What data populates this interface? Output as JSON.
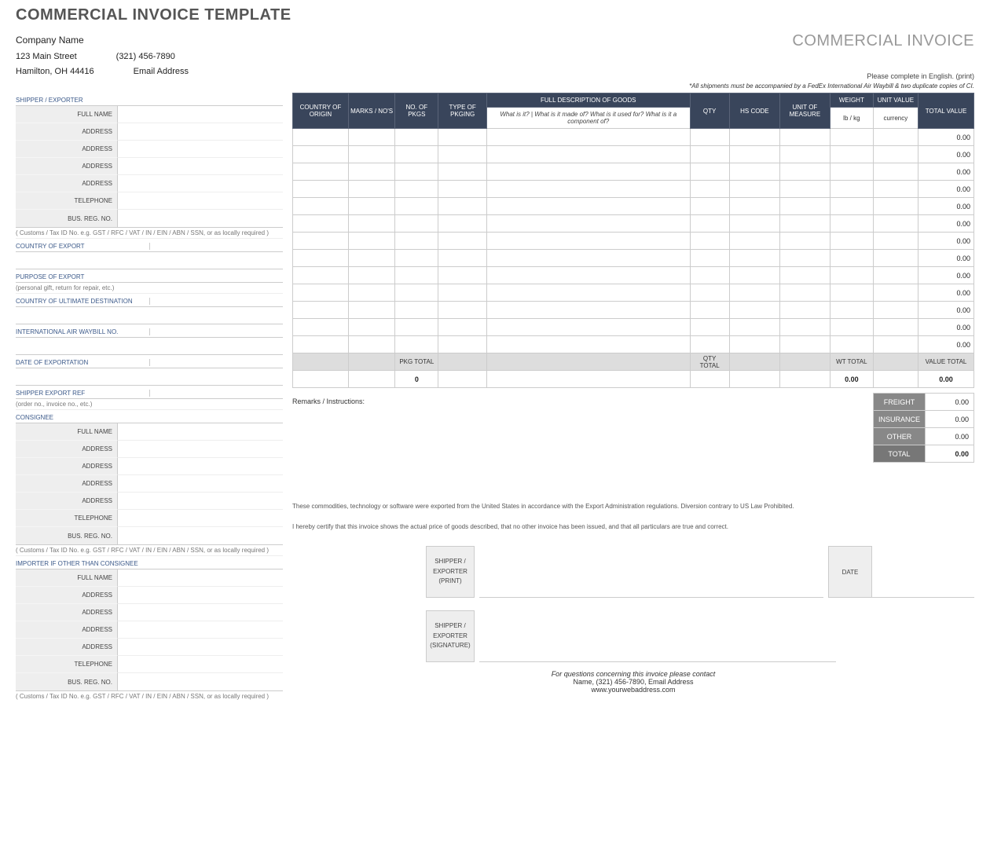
{
  "title": "COMMERCIAL INVOICE TEMPLATE",
  "company": {
    "name": "Company Name",
    "street": "123 Main Street",
    "phone": "(321) 456-7890",
    "city": "Hamilton, OH  44416",
    "email": "Email Address"
  },
  "right_header": {
    "title": "COMMERCIAL INVOICE",
    "note": "Please complete in English. (print)",
    "subnote": "*All shipments must be accompanied by a FedEx International Air Waybill & two duplicate copies of CI."
  },
  "left": {
    "shipper_section": "SHIPPER / EXPORTER",
    "customs_note": "( Customs / Tax ID No. e.g. GST / RFC / VAT / IN / EIN / ABN / SSN, or as locally required )",
    "country_export": "COUNTRY OF EXPORT",
    "purpose_export": "PURPOSE OF EXPORT",
    "purpose_hint": "(personal gift, return for repair, etc.)",
    "country_dest": "COUNTRY OF ULTIMATE DESTINATION",
    "air_waybill": "INTERNATIONAL AIR WAYBILL NO.",
    "date_export": "DATE OF EXPORTATION",
    "shipper_ref": "SHIPPER EXPORT REF",
    "ref_hint": "(order no., invoice no., etc.)",
    "consignee": "CONSIGNEE",
    "importer": "IMPORTER IF OTHER THAN CONSIGNEE",
    "fields": {
      "full_name": "FULL NAME",
      "address": "ADDRESS",
      "telephone": "TELEPHONE",
      "bus_reg": "BUS. REG. NO."
    }
  },
  "goods": {
    "headers": {
      "country": "COUNTRY OF ORIGIN",
      "marks": "MARKS / NO'S",
      "no_pkgs": "NO. OF PKGS",
      "type_pkg": "TYPE OF PKGING",
      "full_desc": "FULL DESCRIPTION OF GOODS",
      "desc_hint": "What is it? | What is it made of? What is it used for? What is it a component of?",
      "qty": "QTY",
      "hs": "HS CODE",
      "uom": "UNIT OF MEASURE",
      "weight": "WEIGHT",
      "weight_sub": "lb / kg",
      "unit_val": "UNIT VALUE",
      "unit_val_sub": "currency",
      "total_val": "TOTAL VALUE"
    },
    "row_count": 13,
    "default_total": "0.00",
    "totals": {
      "pkg_total_label": "PKG TOTAL",
      "pkg_total": "0",
      "qty_total_label": "QTY TOTAL",
      "wt_total_label": "WT TOTAL",
      "wt_total": "0.00",
      "value_total_label": "VALUE TOTAL",
      "value_total": "0.00"
    },
    "remarks_label": "Remarks / Instructions:",
    "summary": {
      "freight": "FREIGHT",
      "freight_val": "0.00",
      "insurance": "INSURANCE",
      "insurance_val": "0.00",
      "other": "OTHER",
      "other_val": "0.00",
      "total": "TOTAL",
      "total_val": "0.00"
    },
    "disclaimer1": "These commodities, technology or software were exported from the United States in accordance with the Export Administration regulations.  Diversion contrary to US Law Prohibited.",
    "disclaimer2": "I hereby certify that this invoice shows the actual price of goods described, that no other invoice has been issued, and that all particulars are true and correct.",
    "sig1": "SHIPPER / EXPORTER (PRINT)",
    "sig2": "SHIPPER / EXPORTER (SIGNATURE)",
    "date_label": "DATE"
  },
  "footer": {
    "line1": "For questions concerning this invoice please contact",
    "line2": "Name, (321) 456-7890, Email Address",
    "line3": "www.yourwebaddress.com"
  },
  "style": {
    "header_bg": "#39455b",
    "cell_border": "#cccccc",
    "label_bg": "#eeeeee",
    "totals_bg": "#dddddd",
    "summary_bg": "#888888"
  }
}
